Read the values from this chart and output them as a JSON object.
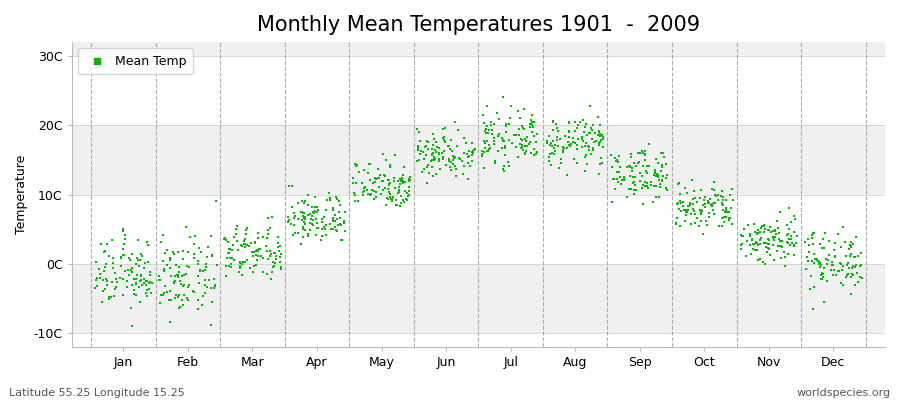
{
  "title": "Monthly Mean Temperatures 1901  -  2009",
  "ylabel": "Temperature",
  "bottom_left_text": "Latitude 55.25 Longitude 15.25",
  "bottom_right_text": "worldspecies.org",
  "legend_label": "Mean Temp",
  "y_tick_labels": [
    "-10C",
    "0C",
    "10C",
    "20C",
    "30C"
  ],
  "y_tick_values": [
    -10,
    0,
    10,
    20,
    30
  ],
  "ylim": [
    -12,
    32
  ],
  "xlim": [
    -0.3,
    12.3
  ],
  "month_labels": [
    "Jan",
    "Feb",
    "Mar",
    "Apr",
    "May",
    "Jun",
    "Jul",
    "Aug",
    "Sep",
    "Oct",
    "Nov",
    "Dec"
  ],
  "month_means": [
    -1.5,
    -2.0,
    1.5,
    6.5,
    11.5,
    16.0,
    18.0,
    17.5,
    13.0,
    8.0,
    3.5,
    0.5
  ],
  "month_stds": [
    2.5,
    2.8,
    2.0,
    1.8,
    1.8,
    1.8,
    1.8,
    1.8,
    1.8,
    1.8,
    1.8,
    2.2
  ],
  "n_years": 109,
  "marker_color": "#00BB00",
  "marker_size": 2,
  "bg_color": "#FFFFFF",
  "plot_bg_color": "#FFFFFF",
  "band_color_light": "#F0F0F0",
  "band_color_white": "#FFFFFF",
  "grid_color": "#999999",
  "title_fontsize": 15,
  "axis_label_fontsize": 9,
  "tick_label_fontsize": 9,
  "annotation_fontsize": 8
}
